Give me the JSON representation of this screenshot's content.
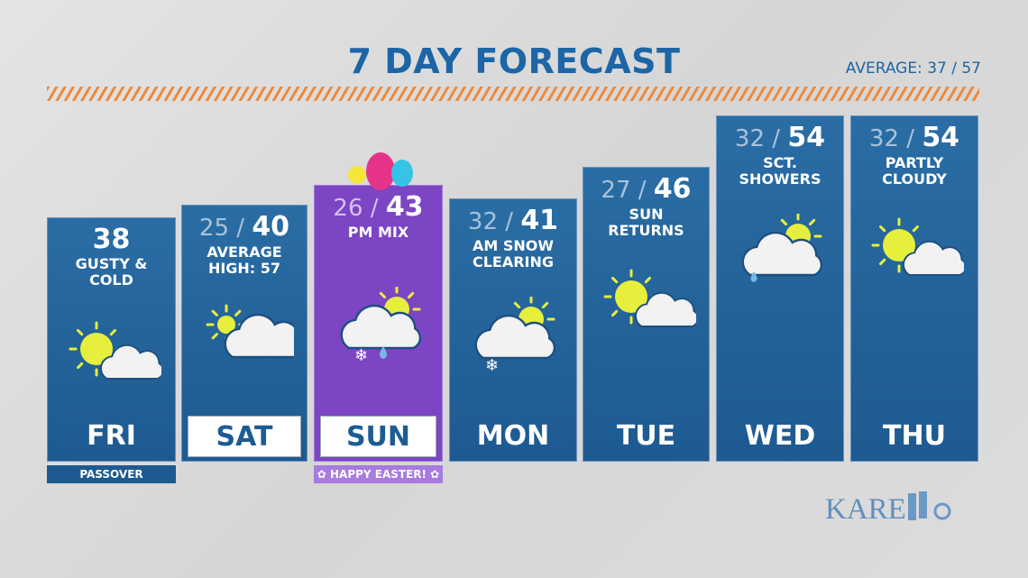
{
  "title": "7 DAY FORECAST",
  "average": "AVERAGE: 37  / 57",
  "colors": {
    "blue": "#1d5a91",
    "purple": "#7c45c4",
    "accent": "#ee8a3c",
    "sun": "#e6ef3c"
  },
  "days": [
    {
      "day": "FRI",
      "low": "",
      "high": "38",
      "desc": "GUSTY &\nCOLD",
      "icon": "partly-sunny",
      "tag": "PASSOVER"
    },
    {
      "day": "SAT",
      "low": "25",
      "high": "40",
      "desc": "AVERAGE\nHIGH: 57",
      "icon": "mostly-cloudy",
      "boxed": true
    },
    {
      "day": "SUN",
      "low": "26",
      "high": "43",
      "desc": "PM MIX",
      "icon": "rain-snow-mix",
      "boxed": true,
      "special": true,
      "tag": "✿  HAPPY EASTER!  ✿"
    },
    {
      "day": "MON",
      "low": "32",
      "high": "41",
      "desc": "AM SNOW\nCLEARING",
      "icon": "snow-clearing"
    },
    {
      "day": "TUE",
      "low": "27",
      "high": "46",
      "desc": "SUN\nRETURNS",
      "icon": "partly-sunny"
    },
    {
      "day": "WED",
      "low": "32",
      "high": "54",
      "desc": "SCT.\nSHOWERS",
      "icon": "showers"
    },
    {
      "day": "THU",
      "low": "32",
      "high": "54",
      "desc": "PARTLY\nCLOUDY",
      "icon": "partly-sunny"
    }
  ],
  "logo": "KARE 11"
}
